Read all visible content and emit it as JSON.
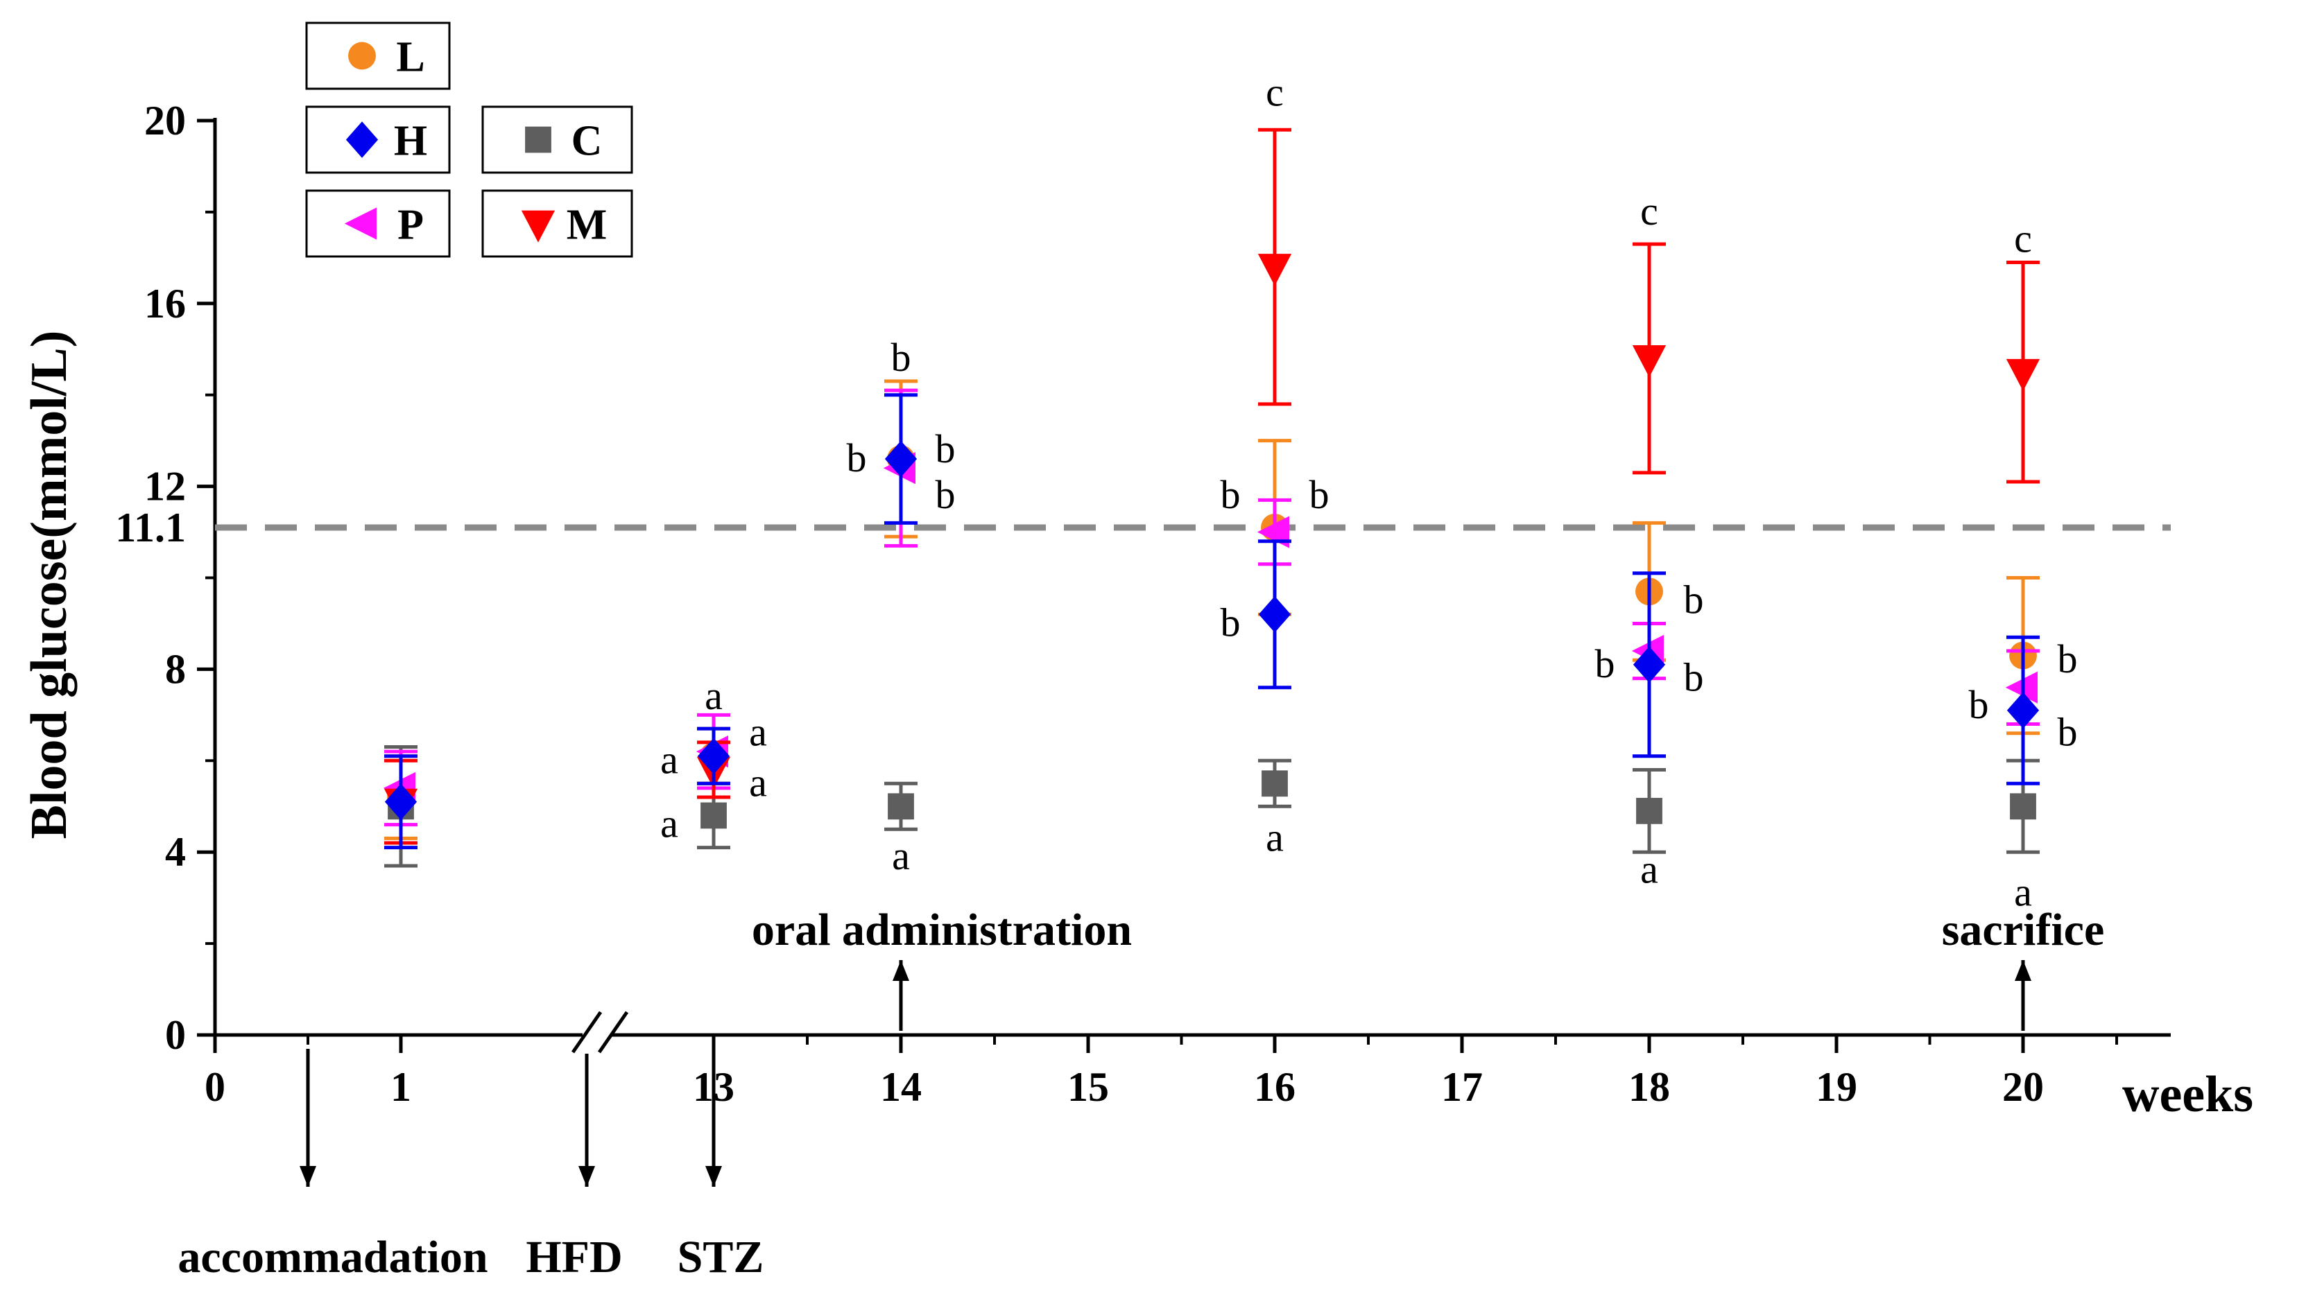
{
  "chart_data": {
    "type": "scatter",
    "ylabel": "Blood glucose(mmol/L)",
    "xlabel": "weeks",
    "ylim": [
      0,
      20
    ],
    "yticks": [
      "0",
      "4",
      "8",
      "12",
      "16",
      "20"
    ],
    "threshold": {
      "value": 11.1,
      "label": "11.1",
      "style": "dashed"
    },
    "xticks": [
      {
        "x": 0,
        "label": "0"
      },
      {
        "x": 1,
        "label": "1"
      },
      {
        "x": 13,
        "label": "13"
      },
      {
        "x": 14,
        "label": "14"
      },
      {
        "x": 15,
        "label": "15"
      },
      {
        "x": 16,
        "label": "16"
      },
      {
        "x": 17,
        "label": "17"
      },
      {
        "x": 18,
        "label": "18"
      },
      {
        "x": 19,
        "label": "19"
      },
      {
        "x": 20,
        "label": "20"
      }
    ],
    "axis_break": "between 1 and 13",
    "legend": [
      {
        "key": "L",
        "label": "L",
        "color": "#f5891f",
        "marker": "circle"
      },
      {
        "key": "H",
        "label": "H",
        "color": "#0000ee",
        "marker": "diamond"
      },
      {
        "key": "C",
        "label": "C",
        "color": "#5e5e5e",
        "marker": "square"
      },
      {
        "key": "P",
        "label": "P",
        "color": "#ff10ff",
        "marker": "triangle-left"
      },
      {
        "key": "M",
        "label": "M",
        "color": "#ff0000",
        "marker": "triangle-down"
      }
    ],
    "series": [
      {
        "name": "C",
        "color": "#5e5e5e",
        "marker": "square",
        "points": [
          {
            "x": 1,
            "y": 5.0,
            "err": 1.3
          },
          {
            "x": 13,
            "y": 4.8,
            "err": 0.7
          },
          {
            "x": 14,
            "y": 5.0,
            "err": 0.5
          },
          {
            "x": 16,
            "y": 5.5,
            "err": 0.5
          },
          {
            "x": 18,
            "y": 4.9,
            "err": 0.9
          },
          {
            "x": 20,
            "y": 5.0,
            "err": 1.0
          }
        ]
      },
      {
        "name": "L",
        "color": "#f5891f",
        "marker": "circle",
        "points": [
          {
            "x": 1,
            "y": 5.2,
            "err": 0.9
          },
          {
            "x": 13,
            "y": 6.1,
            "err": 0.6
          },
          {
            "x": 14,
            "y": 12.6,
            "err": 1.7
          },
          {
            "x": 16,
            "y": 11.1,
            "err": 1.9
          },
          {
            "x": 18,
            "y": 9.7,
            "err": 1.5
          },
          {
            "x": 20,
            "y": 8.3,
            "err": 1.7
          }
        ]
      },
      {
        "name": "P",
        "color": "#ff10ff",
        "marker": "triangle-left",
        "points": [
          {
            "x": 1,
            "y": 5.4,
            "err": 0.8
          },
          {
            "x": 13,
            "y": 6.2,
            "err": 0.8
          },
          {
            "x": 14,
            "y": 12.4,
            "err": 1.7
          },
          {
            "x": 16,
            "y": 11.0,
            "err": 0.7
          },
          {
            "x": 18,
            "y": 8.4,
            "err": 0.6
          },
          {
            "x": 20,
            "y": 7.6,
            "err": 0.8
          }
        ]
      },
      {
        "name": "M",
        "color": "#ff0000",
        "marker": "triangle-down",
        "points": [
          {
            "x": 1,
            "y": 5.1,
            "err": 0.9
          },
          {
            "x": 13,
            "y": 5.8,
            "err": 0.6
          },
          {
            "x": 16,
            "y": 16.8,
            "err": 3.0
          },
          {
            "x": 18,
            "y": 14.8,
            "err": 2.5
          },
          {
            "x": 20,
            "y": 14.5,
            "err": 2.4
          }
        ]
      },
      {
        "name": "H",
        "color": "#0000ee",
        "marker": "diamond",
        "points": [
          {
            "x": 1,
            "y": 5.1,
            "err": 1.0
          },
          {
            "x": 13,
            "y": 6.1,
            "err": 0.6
          },
          {
            "x": 14,
            "y": 12.6,
            "err": 1.4
          },
          {
            "x": 16,
            "y": 9.2,
            "err": 1.6
          },
          {
            "x": 18,
            "y": 8.1,
            "err": 2.0
          },
          {
            "x": 20,
            "y": 7.1,
            "err": 1.6
          }
        ]
      }
    ],
    "letters": [
      {
        "x": 13,
        "y": 7.4,
        "side": "center",
        "text": "a"
      },
      {
        "x": 13,
        "y": 6.6,
        "side": "right",
        "text": "a"
      },
      {
        "x": 13,
        "y": 6.0,
        "side": "left",
        "text": "a"
      },
      {
        "x": 13,
        "y": 5.5,
        "side": "right",
        "text": "a"
      },
      {
        "x": 13,
        "y": 4.6,
        "side": "left",
        "text": "a"
      },
      {
        "x": 14,
        "y": 14.8,
        "side": "center",
        "text": "b"
      },
      {
        "x": 14,
        "y": 12.8,
        "side": "right",
        "text": "b"
      },
      {
        "x": 14,
        "y": 12.6,
        "side": "left",
        "text": "b"
      },
      {
        "x": 14,
        "y": 11.8,
        "side": "right",
        "text": "b"
      },
      {
        "x": 14,
        "y": 3.9,
        "side": "center",
        "text": "a"
      },
      {
        "x": 16,
        "y": 20.6,
        "side": "center",
        "text": "c"
      },
      {
        "x": 16,
        "y": 11.8,
        "side": "left",
        "text": "b"
      },
      {
        "x": 16,
        "y": 11.8,
        "side": "right",
        "text": "b"
      },
      {
        "x": 16,
        "y": 9.0,
        "side": "left",
        "text": "b"
      },
      {
        "x": 16,
        "y": 4.3,
        "side": "center",
        "text": "a"
      },
      {
        "x": 18,
        "y": 18.0,
        "side": "center",
        "text": "c"
      },
      {
        "x": 18,
        "y": 9.5,
        "side": "right",
        "text": "b"
      },
      {
        "x": 18,
        "y": 8.1,
        "side": "left",
        "text": "b"
      },
      {
        "x": 18,
        "y": 7.8,
        "side": "right",
        "text": "b"
      },
      {
        "x": 18,
        "y": 3.6,
        "side": "center",
        "text": "a"
      },
      {
        "x": 20,
        "y": 17.4,
        "side": "center",
        "text": "c"
      },
      {
        "x": 20,
        "y": 8.2,
        "side": "right",
        "text": "b"
      },
      {
        "x": 20,
        "y": 7.2,
        "side": "left",
        "text": "b"
      },
      {
        "x": 20,
        "y": 6.6,
        "side": "right",
        "text": "b"
      },
      {
        "x": 20,
        "y": 3.1,
        "side": "center",
        "text": "a"
      }
    ],
    "annotations": {
      "above_axis": [
        {
          "x": 14,
          "text": "oral administration",
          "align": "center"
        },
        {
          "x": 20,
          "text": "sacrifice",
          "align": "center"
        }
      ],
      "below_axis": [
        {
          "x": 0.5,
          "text": "accommadation"
        },
        {
          "x": 2.0,
          "text": "HFD"
        },
        {
          "x": 13,
          "text": "STZ"
        }
      ]
    }
  }
}
